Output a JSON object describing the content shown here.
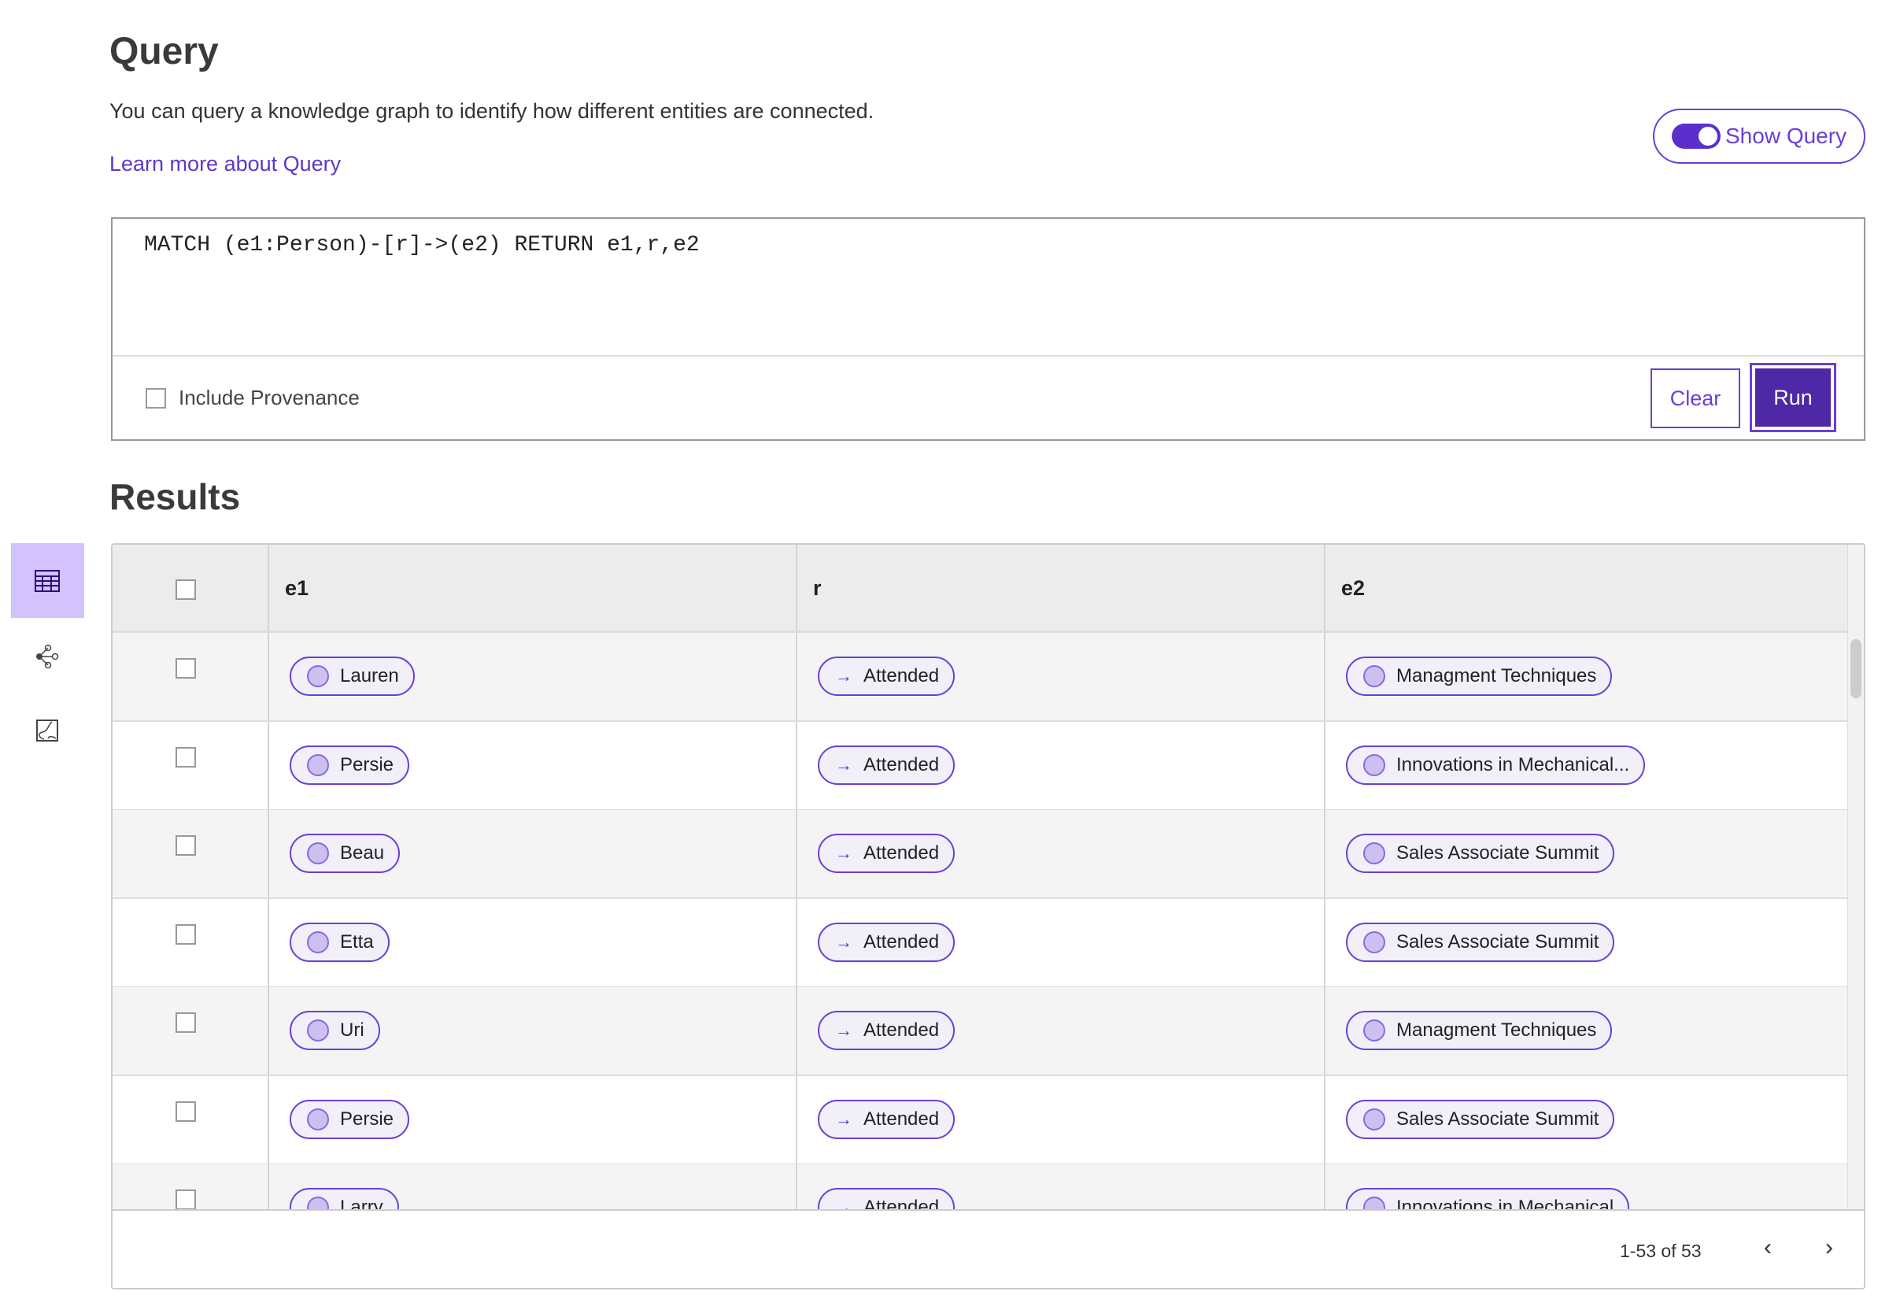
{
  "header": {
    "title": "Query",
    "description": "You can query a knowledge graph to identify how different entities are connected.",
    "learn_more": "Learn more about Query",
    "show_query_label": "Show Query",
    "show_query_on": true
  },
  "query": {
    "text": "MATCH (e1:Person)-[r]->(e2) RETURN e1,r,e2",
    "include_provenance_label": "Include Provenance",
    "include_provenance": false,
    "clear_label": "Clear",
    "run_label": "Run"
  },
  "sidebar": {
    "items": [
      {
        "icon": "table-icon",
        "active": true
      },
      {
        "icon": "graph-icon",
        "active": false
      },
      {
        "icon": "chart-icon",
        "active": false
      }
    ]
  },
  "results": {
    "title": "Results",
    "columns": [
      "e1",
      "r",
      "e2"
    ],
    "rows": [
      {
        "e1": "Lauren",
        "r": "Attended",
        "e2": "Managment Techniques"
      },
      {
        "e1": "Persie",
        "r": "Attended",
        "e2": "Innovations in Mechanical..."
      },
      {
        "e1": "Beau",
        "r": "Attended",
        "e2": "Sales Associate Summit"
      },
      {
        "e1": "Etta",
        "r": "Attended",
        "e2": "Sales Associate Summit"
      },
      {
        "e1": "Uri",
        "r": "Attended",
        "e2": "Managment Techniques"
      },
      {
        "e1": "Persie",
        "r": "Attended",
        "e2": "Sales Associate Summit"
      },
      {
        "e1": "Larry",
        "r": "Attended",
        "e2": "Innovations in Mechanical"
      }
    ],
    "pagination": "1-53 of 53"
  },
  "colors": {
    "accent": "#6a3fd6",
    "run_bg": "#4e28a6",
    "sidebar_active": "#d2c2fd"
  }
}
